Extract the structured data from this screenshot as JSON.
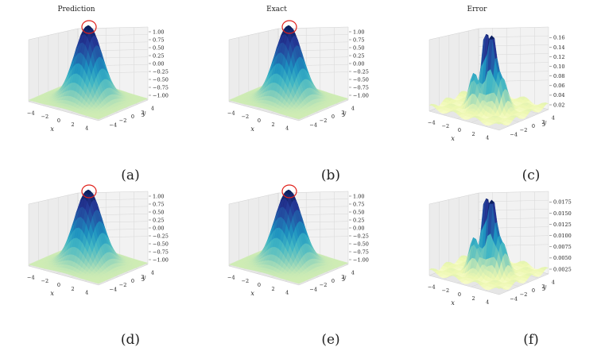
{
  "chart_data": [
    {
      "id": "a",
      "type": "surface3d",
      "title": "Prediction",
      "caption": "(a)",
      "xlabel": "x",
      "ylabel": "y",
      "xticks": [
        "−4",
        "−2",
        "0",
        "2",
        "4"
      ],
      "yticks": [
        "−4",
        "−2",
        "0",
        "2",
        "4"
      ],
      "zticks": [
        "−1.00",
        "−0.75",
        "−0.50",
        "−0.25",
        "0.00",
        "0.25",
        "0.50",
        "0.75",
        "1.00"
      ],
      "zlim": [
        -1,
        1
      ],
      "xlim": [
        -5,
        5
      ],
      "ylim": [
        -5,
        5
      ],
      "peak": 1.0,
      "circle_peak": true,
      "colormap": "YlGnBu"
    },
    {
      "id": "b",
      "type": "surface3d",
      "title": "Exact",
      "caption": "(b)",
      "xlabel": "x",
      "ylabel": "y",
      "xticks": [
        "−4",
        "−2",
        "0",
        "2",
        "4"
      ],
      "yticks": [
        "−4",
        "−2",
        "0",
        "2",
        "4"
      ],
      "zticks": [
        "−1.00",
        "−0.75",
        "−0.50",
        "−0.25",
        "0.00",
        "0.25",
        "0.50",
        "0.75",
        "1.00"
      ],
      "zlim": [
        -1,
        1
      ],
      "xlim": [
        -5,
        5
      ],
      "ylim": [
        -5,
        5
      ],
      "peak": 1.0,
      "circle_peak": true,
      "colormap": "YlGnBu"
    },
    {
      "id": "c",
      "type": "surface3d",
      "title": "Error",
      "caption": "(c)",
      "xlabel": "x",
      "ylabel": "y",
      "xticks": [
        "−4",
        "−2",
        "0",
        "2",
        "4"
      ],
      "yticks": [
        "−4",
        "−2",
        "0",
        "2",
        "4"
      ],
      "zticks": [
        "0.02",
        "0.04",
        "0.06",
        "0.08",
        "0.10",
        "0.12",
        "0.14",
        "0.16"
      ],
      "zlim": [
        0,
        0.17
      ],
      "xlim": [
        -5,
        5
      ],
      "ylim": [
        -5,
        5
      ],
      "peak": 0.16,
      "circle_peak": false,
      "colormap": "YlGnBu"
    },
    {
      "id": "d",
      "type": "surface3d",
      "title": "",
      "caption": "(d)",
      "xlabel": "x",
      "ylabel": "y",
      "xticks": [
        "−4",
        "−2",
        "0",
        "2",
        "4"
      ],
      "yticks": [
        "−4",
        "−2",
        "0",
        "2",
        "4"
      ],
      "zticks": [
        "−1.00",
        "−0.75",
        "−0.50",
        "−0.25",
        "0.00",
        "0.25",
        "0.50",
        "0.75",
        "1.00"
      ],
      "zlim": [
        -1,
        1
      ],
      "xlim": [
        -5,
        5
      ],
      "ylim": [
        -5,
        5
      ],
      "peak": 1.0,
      "circle_peak": true,
      "colormap": "YlGnBu"
    },
    {
      "id": "e",
      "type": "surface3d",
      "title": "",
      "caption": "(e)",
      "xlabel": "x",
      "ylabel": "y",
      "xticks": [
        "−4",
        "−2",
        "0",
        "2",
        "4"
      ],
      "yticks": [
        "−4",
        "−2",
        "0",
        "2",
        "4"
      ],
      "zticks": [
        "−1.00",
        "−0.75",
        "−0.50",
        "−0.25",
        "0.00",
        "0.25",
        "0.50",
        "0.75",
        "1.00"
      ],
      "zlim": [
        -1,
        1
      ],
      "xlim": [
        -5,
        5
      ],
      "ylim": [
        -5,
        5
      ],
      "peak": 1.0,
      "circle_peak": true,
      "colormap": "YlGnBu"
    },
    {
      "id": "f",
      "type": "surface3d",
      "title": "",
      "caption": "(f)",
      "xlabel": "x",
      "ylabel": "y",
      "xticks": [
        "−4",
        "−2",
        "0",
        "2",
        "4"
      ],
      "yticks": [
        "−4",
        "−2",
        "0",
        "2",
        "4"
      ],
      "zticks": [
        "0.0025",
        "0.0050",
        "0.0075",
        "0.0100",
        "0.0125",
        "0.0150",
        "0.0175"
      ],
      "zlim": [
        0,
        0.019
      ],
      "xlim": [
        -5,
        5
      ],
      "ylim": [
        -5,
        5
      ],
      "peak": 0.018,
      "circle_peak": false,
      "colormap": "YlGnBu"
    }
  ],
  "colors": {
    "cmap": [
      "#ffffd9",
      "#edf8b1",
      "#c7e9b4",
      "#7fcdbb",
      "#41b6c4",
      "#1d91c0",
      "#225ea8",
      "#253494",
      "#081d58"
    ],
    "circle": "#e0201a",
    "pane": "#f2f2f2",
    "grid": "#d8d8d8"
  }
}
